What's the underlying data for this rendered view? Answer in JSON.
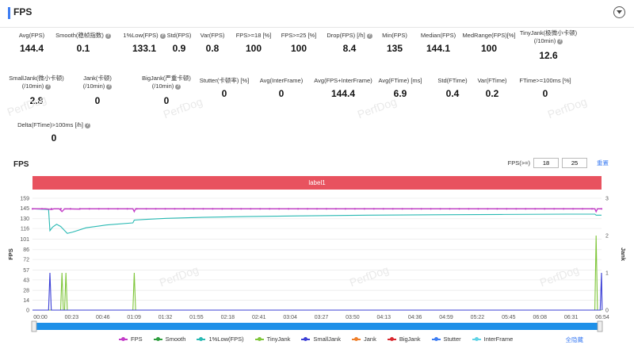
{
  "header": {
    "title": "FPS"
  },
  "metrics_row1": [
    {
      "label": "Avg(FPS)",
      "value": "144.4",
      "help": false
    },
    {
      "label": "Smooth(稳帧指数)",
      "value": "0.1",
      "help": true
    },
    {
      "label": "1%Low(FPS)",
      "value": "133.1",
      "help": true
    },
    {
      "label": "Std(FPS)",
      "value": "0.9",
      "help": false
    },
    {
      "label": "Var(FPS)",
      "value": "0.8",
      "help": false
    },
    {
      "label": "FPS>=18 [%]",
      "value": "100",
      "help": false
    },
    {
      "label": "FPS>=25 [%]",
      "value": "100",
      "help": false
    },
    {
      "label": "Drop(FPS) [/h]",
      "value": "8.4",
      "help": true
    },
    {
      "label": "Min(FPS)",
      "value": "135",
      "help": false
    },
    {
      "label": "Median(FPS)",
      "value": "144.1",
      "help": false
    },
    {
      "label": "MedRange(FPS)[%]",
      "value": "100",
      "help": false
    },
    {
      "label": "TinyJank(极微小卡顿)",
      "label2": "(/10min)",
      "value": "12.6",
      "help": true
    }
  ],
  "metrics_row2": [
    {
      "label": "SmallJank(微小卡顿)",
      "label2": "(/10min)",
      "value": "2.8",
      "help": true
    },
    {
      "label": "Jank(卡顿)",
      "label2": "(/10min)",
      "value": "0",
      "help": true
    },
    {
      "label": "BigJank(严重卡顿)",
      "label2": "(/10min)",
      "value": "0",
      "help": true
    },
    {
      "label": "Stutter(卡顿率) [%]",
      "value": "0",
      "help": false
    },
    {
      "label": "Avg(InterFrame)",
      "value": "0",
      "help": false
    },
    {
      "label": "Avg(FPS+InterFrame)",
      "value": "144.4",
      "help": false
    },
    {
      "label": "Avg(FTime) [ms]",
      "value": "6.9",
      "help": false
    },
    {
      "label": "Std(FTime)",
      "value": "0.4",
      "help": false
    },
    {
      "label": "Var(FTime)",
      "value": "0.2",
      "help": false
    },
    {
      "label": "FTime>=100ms [%]",
      "value": "0",
      "help": false
    }
  ],
  "metrics_row3": [
    {
      "label": "Delta(FTime)>100ms [/h]",
      "value": "0",
      "help": true
    }
  ],
  "chart_section": {
    "title": "FPS",
    "filter_label": "FPS(>=)",
    "filter_low": "18",
    "filter_high": "25",
    "reset_label": "重置",
    "label_bar": "label1"
  },
  "watermark": "PerfDog",
  "hide_all_label": "全隐藏",
  "chart_data": {
    "type": "line",
    "xlabel": "",
    "ylabel": "FPS",
    "y2label": "Jank",
    "x_ticks": [
      "00:00",
      "00:23",
      "00:46",
      "01:09",
      "01:32",
      "01:55",
      "02:18",
      "02:41",
      "03:04",
      "03:27",
      "03:50",
      "04:13",
      "04:36",
      "04:59",
      "05:22",
      "05:45",
      "06:08",
      "06:31",
      "06:54"
    ],
    "y_ticks": [
      0,
      14,
      28,
      43,
      57,
      72,
      86,
      101,
      116,
      130,
      145,
      159
    ],
    "ylim": [
      0,
      159
    ],
    "y2_ticks": [
      0,
      1,
      2,
      3
    ],
    "y2lim": [
      0,
      3
    ],
    "x_range_seconds": [
      0,
      425
    ],
    "colors": {
      "FPS": "#c33bc8",
      "Smooth": "#2e9e3e",
      "1%Low(FPS)": "#29b9b3",
      "TinyJank": "#7fc63a",
      "SmallJank": "#3b3fd6",
      "Jank": "#ef7f2a",
      "BigJank": "#d9282f",
      "Stutter": "#3d7df3",
      "InterFrame": "#5fd3e6"
    },
    "legend": [
      "FPS",
      "Smooth",
      "1%Low(FPS)",
      "TinyJank",
      "SmallJank",
      "Jank",
      "BigJank",
      "Stutter",
      "InterFrame"
    ],
    "series": [
      {
        "name": "FPS",
        "axis": "left",
        "points": [
          [
            0,
            144
          ],
          [
            10,
            144
          ],
          [
            14,
            143
          ],
          [
            16,
            144
          ],
          [
            20,
            144
          ],
          [
            22,
            140
          ],
          [
            24,
            144
          ],
          [
            35,
            143.5
          ],
          [
            36,
            144
          ],
          [
            75,
            144
          ],
          [
            76,
            140
          ],
          [
            77,
            144
          ],
          [
            120,
            144
          ],
          [
            200,
            144
          ],
          [
            300,
            144
          ],
          [
            380,
            144
          ],
          [
            420,
            144
          ],
          [
            421,
            140
          ],
          [
            422,
            144
          ],
          [
            425,
            144
          ]
        ]
      },
      {
        "name": "1%Low(FPS)",
        "axis": "left",
        "points": [
          [
            0,
            144
          ],
          [
            12,
            143
          ],
          [
            13,
            113
          ],
          [
            15,
            118
          ],
          [
            18,
            122
          ],
          [
            21,
            119
          ],
          [
            23,
            115
          ],
          [
            26,
            109
          ],
          [
            30,
            111
          ],
          [
            40,
            117
          ],
          [
            55,
            121
          ],
          [
            75,
            124
          ],
          [
            76,
            128
          ],
          [
            85,
            129
          ],
          [
            100,
            130.5
          ],
          [
            130,
            132
          ],
          [
            160,
            133
          ],
          [
            200,
            134
          ],
          [
            250,
            135
          ],
          [
            300,
            135.5
          ],
          [
            350,
            136
          ],
          [
            400,
            136.5
          ],
          [
            420,
            136.5
          ],
          [
            421,
            135
          ],
          [
            425,
            135
          ]
        ]
      },
      {
        "name": "TinyJank",
        "axis": "right",
        "points": [
          [
            0,
            0
          ],
          [
            21,
            0
          ],
          [
            22,
            1
          ],
          [
            23,
            0
          ],
          [
            24,
            0
          ],
          [
            25,
            1
          ],
          [
            26,
            0
          ],
          [
            75,
            0
          ],
          [
            76,
            1
          ],
          [
            77,
            0
          ],
          [
            420,
            0
          ],
          [
            421,
            2
          ],
          [
            422,
            0
          ],
          [
            425,
            0
          ]
        ]
      },
      {
        "name": "SmallJank",
        "axis": "right",
        "points": [
          [
            0,
            0
          ],
          [
            12,
            0
          ],
          [
            13,
            1
          ],
          [
            14,
            0
          ],
          [
            424,
            0
          ],
          [
            425,
            1
          ],
          [
            425.5,
            0
          ]
        ]
      },
      {
        "name": "Smooth",
        "axis": "right",
        "points": [
          [
            0,
            0
          ],
          [
            425,
            0
          ]
        ]
      }
    ]
  }
}
